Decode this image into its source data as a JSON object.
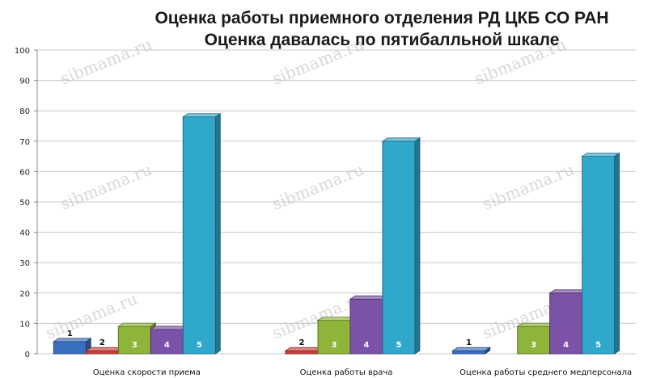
{
  "chart_data": {
    "type": "bar",
    "title": "Оценка работы приемного отделения РД ЦКБ СО РАН",
    "subtitle": "Оценка давалась по пятибалльной шкале",
    "categories": [
      "Оценка скорости приема",
      "Оценка работы врача",
      "Оценка работы среднего медперсонала"
    ],
    "series": [
      {
        "name": "1",
        "color": "#3a6fc0",
        "values": [
          4,
          0,
          1
        ]
      },
      {
        "name": "2",
        "color": "#c9413d",
        "values": [
          1,
          1,
          0
        ]
      },
      {
        "name": "3",
        "color": "#8fb43a",
        "values": [
          9,
          11,
          9
        ]
      },
      {
        "name": "4",
        "color": "#7a52a8",
        "values": [
          8,
          18,
          20
        ]
      },
      {
        "name": "5",
        "color": "#2fa8cc",
        "values": [
          78,
          70,
          65
        ]
      }
    ],
    "data_labels": [
      [
        "1",
        "2",
        "3",
        "4",
        "5"
      ],
      [
        "",
        "2",
        "3",
        "4",
        "5"
      ],
      [
        "1",
        "",
        "3",
        "4",
        "5"
      ]
    ],
    "yticks": [
      "0",
      "10",
      "20",
      "30",
      "40",
      "50",
      "60",
      "70",
      "80",
      "90",
      "100"
    ],
    "ylim": [
      0,
      100
    ],
    "grid": true,
    "legend": "none"
  },
  "watermark": "sibmama.ru"
}
